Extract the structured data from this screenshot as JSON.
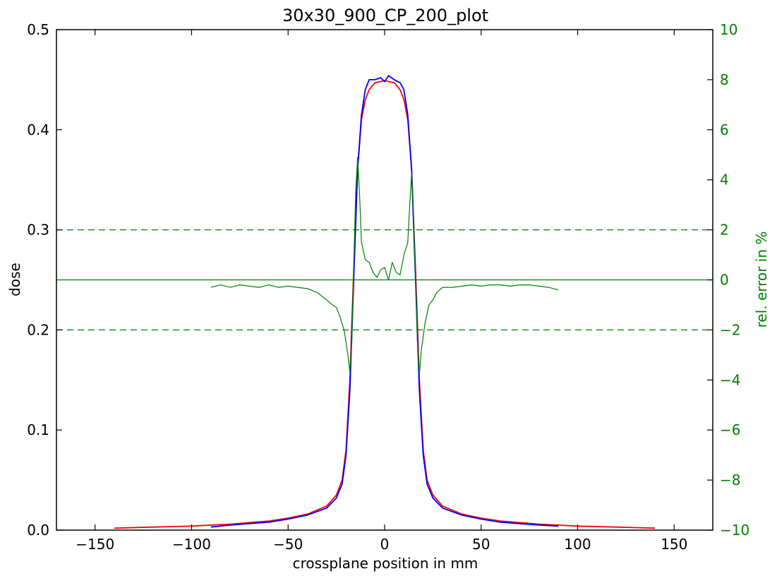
{
  "chart_data": {
    "type": "line",
    "title": "30x30_900_CP_200_plot",
    "xlabel": "crossplane position in mm",
    "ylabel": "dose",
    "y2label": "rel. error in %",
    "xlim": [
      -170,
      170
    ],
    "ylim": [
      0.0,
      0.5
    ],
    "y2lim": [
      -10,
      10
    ],
    "xticks": [
      -150,
      -100,
      -50,
      0,
      50,
      100,
      150
    ],
    "yticks": [
      0.0,
      0.1,
      0.2,
      0.3,
      0.4,
      0.5
    ],
    "y2ticks": [
      -10,
      -8,
      -6,
      -4,
      -2,
      0,
      2,
      4,
      6,
      8,
      10
    ],
    "xtick_labels": [
      "−150",
      "−100",
      "−50",
      "0",
      "50",
      "100",
      "150"
    ],
    "ytick_labels": [
      "0.0",
      "0.1",
      "0.2",
      "0.3",
      "0.4",
      "0.5"
    ],
    "y2tick_labels": [
      "−10",
      "−8",
      "−6",
      "−4",
      "−2",
      "0",
      "2",
      "4",
      "6",
      "8",
      "10"
    ],
    "grid": false,
    "colors": {
      "series1": "#ff0000",
      "series2": "#0000ff",
      "error": "#008000"
    },
    "series": [
      {
        "color": "#ff0000",
        "axis": "left",
        "x": [
          -140,
          -120,
          -100,
          -80,
          -60,
          -50,
          -40,
          -30,
          -25,
          -22,
          -20,
          -18,
          -16,
          -14,
          -12,
          -10,
          -8,
          -5,
          0,
          5,
          8,
          10,
          12,
          14,
          16,
          18,
          20,
          22,
          25,
          30,
          40,
          50,
          60,
          80,
          100,
          120,
          140
        ],
        "y": [
          0.002,
          0.003,
          0.004,
          0.006,
          0.009,
          0.012,
          0.016,
          0.024,
          0.035,
          0.05,
          0.08,
          0.15,
          0.26,
          0.36,
          0.41,
          0.43,
          0.44,
          0.447,
          0.449,
          0.447,
          0.44,
          0.43,
          0.41,
          0.36,
          0.26,
          0.15,
          0.08,
          0.05,
          0.035,
          0.024,
          0.016,
          0.012,
          0.009,
          0.006,
          0.004,
          0.003,
          0.002
        ]
      },
      {
        "color": "#0000ff",
        "axis": "left",
        "x": [
          -90,
          -80,
          -60,
          -50,
          -40,
          -30,
          -25,
          -22,
          -20,
          -18,
          -16,
          -14,
          -12,
          -10,
          -8,
          -5,
          -2,
          0,
          2,
          5,
          8,
          10,
          12,
          14,
          16,
          18,
          20,
          22,
          25,
          30,
          40,
          50,
          60,
          80,
          90
        ],
        "y": [
          0.003,
          0.005,
          0.008,
          0.011,
          0.015,
          0.022,
          0.032,
          0.046,
          0.075,
          0.14,
          0.25,
          0.36,
          0.415,
          0.44,
          0.45,
          0.45,
          0.452,
          0.448,
          0.454,
          0.45,
          0.447,
          0.44,
          0.415,
          0.36,
          0.25,
          0.14,
          0.075,
          0.046,
          0.032,
          0.022,
          0.015,
          0.011,
          0.008,
          0.005,
          0.004
        ]
      },
      {
        "color": "#008000",
        "axis": "right",
        "x": [
          -90,
          -85,
          -80,
          -75,
          -70,
          -65,
          -60,
          -55,
          -50,
          -45,
          -40,
          -35,
          -30,
          -27,
          -25,
          -23,
          -21,
          -19,
          -18,
          -17,
          -16,
          -15,
          -14,
          -13,
          -12,
          -10,
          -8,
          -6,
          -4,
          -2,
          0,
          2,
          4,
          6,
          8,
          10,
          12,
          13,
          14,
          15,
          16,
          17,
          18,
          19,
          21,
          23,
          25,
          27,
          30,
          35,
          40,
          45,
          50,
          55,
          60,
          65,
          70,
          75,
          80,
          85,
          90
        ],
        "y": [
          -0.3,
          -0.2,
          -0.3,
          -0.2,
          -0.25,
          -0.3,
          -0.2,
          -0.3,
          -0.25,
          -0.3,
          -0.35,
          -0.5,
          -0.8,
          -1.0,
          -1.1,
          -1.5,
          -2.0,
          -3.0,
          -3.7,
          -2.5,
          0.5,
          3.5,
          4.9,
          3.5,
          1.5,
          0.8,
          0.7,
          0.3,
          0.1,
          0.4,
          0.5,
          0.0,
          0.7,
          0.3,
          0.2,
          1.0,
          1.5,
          3.0,
          4.3,
          2.5,
          0.0,
          -2.5,
          -3.8,
          -2.8,
          -1.7,
          -1.0,
          -0.8,
          -0.5,
          -0.3,
          -0.3,
          -0.25,
          -0.2,
          -0.25,
          -0.2,
          -0.2,
          -0.25,
          -0.2,
          -0.2,
          -0.25,
          -0.3,
          -0.4
        ]
      }
    ],
    "reference_lines": [
      {
        "axis": "right",
        "y": 0,
        "style": "solid",
        "color": "#008000"
      },
      {
        "axis": "right",
        "y": 2,
        "style": "dashed",
        "color": "#008000"
      },
      {
        "axis": "right",
        "y": -2,
        "style": "dashed",
        "color": "#008000"
      }
    ]
  }
}
